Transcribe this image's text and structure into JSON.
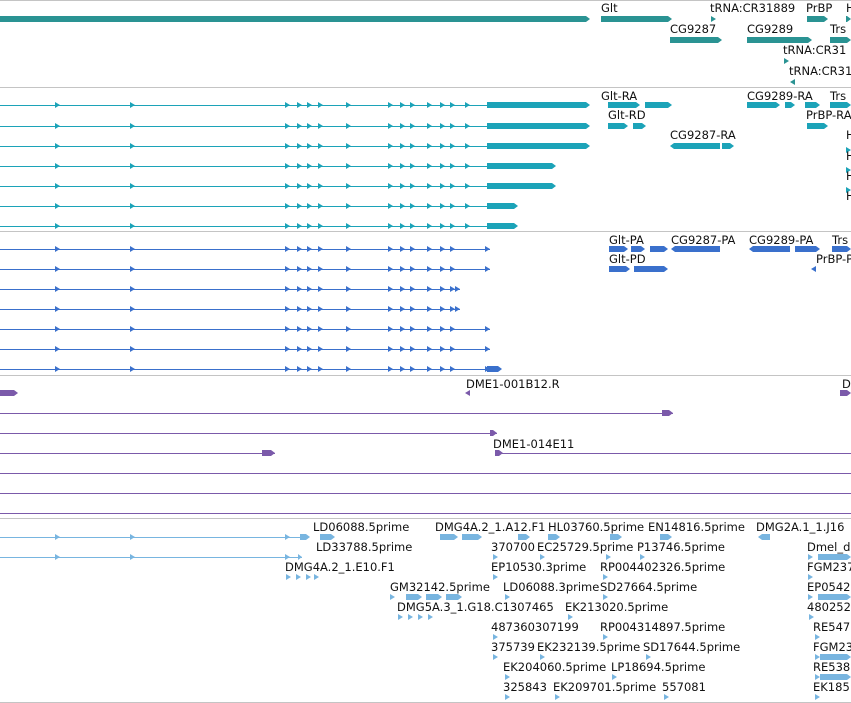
{
  "colors": {
    "gene": "#2a9393",
    "transcript": "#1ca3b8",
    "protein": "#3a70cc",
    "clone": "#7b5aaa",
    "est": "#78b5e0",
    "separator": "#c4c4c4"
  },
  "tracks": {
    "genes": {
      "labels": [
        {
          "text": "Glt"
        },
        {
          "text": "tRNA:CR31889"
        },
        {
          "text": "PrBP"
        },
        {
          "text": "H"
        },
        {
          "text": "CG9287"
        },
        {
          "text": "CG9289"
        },
        {
          "text": "Trs"
        },
        {
          "text": "tRNA:CR31"
        },
        {
          "text": "tRNA:CR31"
        }
      ]
    },
    "transcripts": {
      "labels": [
        {
          "text": "Glt-RA"
        },
        {
          "text": "CG9289-RA"
        },
        {
          "text": "Trs"
        },
        {
          "text": "Glt-RD"
        },
        {
          "text": "PrBP-RA"
        },
        {
          "text": "CG9287-RA"
        },
        {
          "text": "H"
        },
        {
          "text": "H"
        },
        {
          "text": "H"
        },
        {
          "text": "H"
        }
      ]
    },
    "proteins": {
      "labels": [
        {
          "text": "Glt-PA"
        },
        {
          "text": "CG9287-PA"
        },
        {
          "text": "CG9289-PA"
        },
        {
          "text": "Trs"
        },
        {
          "text": "Glt-PD"
        },
        {
          "text": "PrBP-P"
        }
      ]
    },
    "clones": {
      "labels": [
        {
          "text": "DME1-001B12.R"
        },
        {
          "text": "D"
        },
        {
          "text": "DME1-014E11"
        }
      ]
    },
    "ests": {
      "labels": [
        {
          "text": "LD06088.5prime"
        },
        {
          "text": "DMG4A.2_1.A12.F1"
        },
        {
          "text": "HL03760.5prime"
        },
        {
          "text": "EN14816.5prime"
        },
        {
          "text": "DMG2A.1_1.J16"
        },
        {
          "text": "LD33788.5prime"
        },
        {
          "text": "370700"
        },
        {
          "text": "EC25729.5prime"
        },
        {
          "text": "P13746.5prime"
        },
        {
          "text": "Dmel_d"
        },
        {
          "text": "DMG4A.2_1.E10.F1"
        },
        {
          "text": "EP10530.3prime"
        },
        {
          "text": "RP004402326.5prime"
        },
        {
          "text": "FGM237"
        },
        {
          "text": "GM32142.5prime"
        },
        {
          "text": "LD06088.3prime"
        },
        {
          "text": "SD27664.5prime"
        },
        {
          "text": "EP0542"
        },
        {
          "text": "DMG5A.3_1.G18.C1307465"
        },
        {
          "text": "EK213020.5prime"
        },
        {
          "text": "480252"
        },
        {
          "text": "487360307199"
        },
        {
          "text": "RP004314897.5prime"
        },
        {
          "text": "RE547"
        },
        {
          "text": "375739"
        },
        {
          "text": "EK232139.5prime"
        },
        {
          "text": "SD17644.5prime"
        },
        {
          "text": "FGM23"
        },
        {
          "text": "EK204060.5prime"
        },
        {
          "text": "LP18694.5prime"
        },
        {
          "text": "RE538"
        },
        {
          "text": "325843"
        },
        {
          "text": "EK209701.5prime"
        },
        {
          "text": "557081"
        },
        {
          "text": "EK185"
        }
      ]
    }
  }
}
